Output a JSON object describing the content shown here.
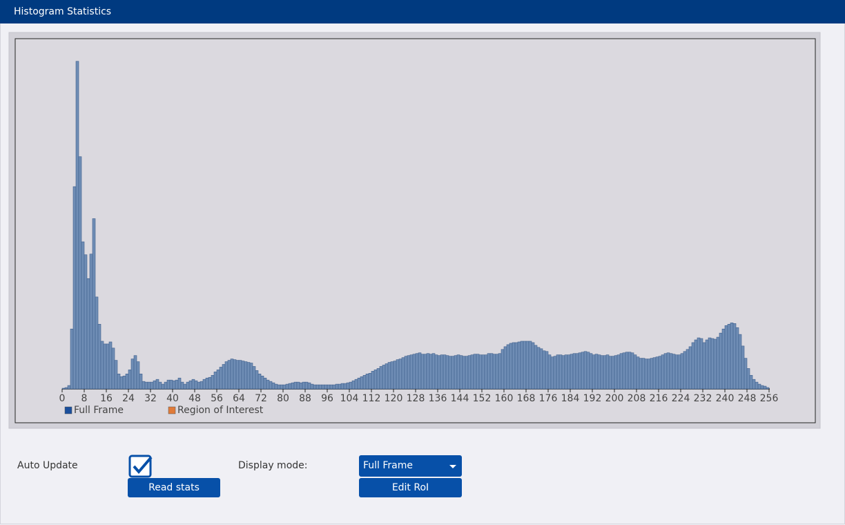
{
  "header": {
    "title": "Histogram Statistics"
  },
  "chart_data": {
    "type": "histogram",
    "bins": [
      0,
      1,
      2,
      3,
      4,
      5,
      6,
      7,
      8,
      9,
      10,
      11,
      12,
      13,
      14,
      15,
      16,
      17,
      18,
      19,
      20,
      21,
      22,
      23,
      24,
      25,
      26,
      27,
      28,
      29,
      30,
      31,
      32,
      33,
      34,
      35,
      36,
      37,
      38,
      39,
      40,
      41,
      42,
      43,
      44,
      45,
      46,
      47,
      48,
      49,
      50,
      51,
      52,
      53,
      54,
      55,
      56,
      57,
      58,
      59,
      60,
      61,
      62,
      63,
      64,
      65,
      66,
      67,
      68,
      69,
      70,
      71,
      72,
      73,
      74,
      75,
      76,
      77,
      78,
      79,
      80,
      81,
      82,
      83,
      84,
      85,
      86,
      87,
      88,
      89,
      90,
      91,
      92,
      93,
      94,
      95,
      96,
      97,
      98,
      99,
      100,
      101,
      102,
      103,
      104,
      105,
      106,
      107,
      108,
      109,
      110,
      111,
      112,
      113,
      114,
      115,
      116,
      117,
      118,
      119,
      120,
      121,
      122,
      123,
      124,
      125,
      126,
      127,
      128,
      129,
      130,
      131,
      132,
      133,
      134,
      135,
      136,
      137,
      138,
      139,
      140,
      141,
      142,
      143,
      144,
      145,
      146,
      147,
      148,
      149,
      150,
      151,
      152,
      153,
      154,
      155,
      156,
      157,
      158,
      159,
      160,
      161,
      162,
      163,
      164,
      165,
      166,
      167,
      168,
      169,
      170,
      171,
      172,
      173,
      174,
      175,
      176,
      177,
      178,
      179,
      180,
      181,
      182,
      183,
      184,
      185,
      186,
      187,
      188,
      189,
      190,
      191,
      192,
      193,
      194,
      195,
      196,
      197,
      198,
      199,
      200,
      201,
      202,
      203,
      204,
      205,
      206,
      207,
      208,
      209,
      210,
      211,
      212,
      213,
      214,
      215,
      216,
      217,
      218,
      219,
      220,
      221,
      222,
      223,
      224,
      225,
      226,
      227,
      228,
      229,
      230,
      231,
      232,
      233,
      234,
      235,
      236,
      237,
      238,
      239,
      240,
      241,
      242,
      243,
      244,
      245,
      246,
      247,
      248,
      249,
      250,
      251,
      252,
      253,
      254,
      255,
      256
    ],
    "series": [
      {
        "name": "Full Frame",
        "color": "#6f8db5",
        "values": [
          1,
          2,
          5,
          88,
          297,
          481,
          341,
          216,
          197,
          162,
          198,
          250,
          135,
          95,
          70,
          66,
          66,
          69,
          60,
          42,
          22,
          18,
          19,
          22,
          28,
          44,
          49,
          40,
          22,
          11,
          10,
          10,
          10,
          12,
          14,
          10,
          7,
          10,
          13,
          13,
          12,
          13,
          16,
          10,
          7,
          10,
          12,
          14,
          12,
          10,
          11,
          14,
          16,
          17,
          20,
          25,
          28,
          32,
          36,
          40,
          42,
          44,
          43,
          42,
          42,
          41,
          40,
          39,
          38,
          33,
          27,
          22,
          19,
          16,
          13,
          11,
          9,
          7,
          6,
          6,
          6,
          7,
          8,
          9,
          10,
          10,
          9,
          10,
          10,
          9,
          7,
          6,
          6,
          6,
          6,
          6,
          6,
          6,
          6,
          7,
          7,
          8,
          8,
          9,
          10,
          12,
          14,
          16,
          18,
          20,
          22,
          23,
          26,
          28,
          30,
          33,
          35,
          37,
          39,
          40,
          41,
          43,
          44,
          46,
          48,
          49,
          50,
          51,
          52,
          53,
          51,
          51,
          52,
          51,
          52,
          50,
          49,
          50,
          50,
          49,
          48,
          48,
          49,
          50,
          49,
          48,
          48,
          49,
          50,
          51,
          51,
          50,
          50,
          50,
          52,
          52,
          51,
          51,
          52,
          58,
          62,
          65,
          67,
          68,
          68,
          69,
          70,
          70,
          70,
          70,
          68,
          64,
          61,
          59,
          56,
          55,
          50,
          47,
          48,
          50,
          50,
          49,
          50,
          50,
          51,
          52,
          52,
          53,
          54,
          55,
          54,
          52,
          50,
          51,
          50,
          49,
          49,
          50,
          48,
          48,
          49,
          50,
          52,
          53,
          54,
          54,
          53,
          50,
          47,
          45,
          45,
          44,
          44,
          45,
          46,
          47,
          48,
          50,
          52,
          53,
          52,
          51,
          50,
          50,
          52,
          55,
          58,
          62,
          68,
          72,
          75,
          74,
          68,
          72,
          75,
          74,
          73,
          76,
          82,
          88,
          93,
          95,
          97,
          96,
          90,
          80,
          63,
          45,
          30,
          20,
          14,
          10,
          7,
          5,
          4,
          2
        ]
      }
    ],
    "legend": [
      {
        "name": "Full Frame",
        "color": "#1a4f9c"
      },
      {
        "name": "Region of Interest",
        "color": "#e07b39"
      }
    ],
    "xlim": [
      0,
      256
    ],
    "xticks": [
      0,
      8,
      16,
      24,
      32,
      40,
      48,
      56,
      64,
      72,
      80,
      88,
      96,
      104,
      112,
      120,
      128,
      136,
      144,
      152,
      160,
      168,
      176,
      184,
      192,
      200,
      208,
      216,
      224,
      232,
      240,
      248,
      256
    ],
    "ylim": [
      0,
      500
    ]
  },
  "controls": {
    "auto_update_label": "Auto Update",
    "auto_update_checked": true,
    "read_stats_button": "Read stats",
    "display_mode_label": "Display mode:",
    "display_mode_value": "Full Frame",
    "edit_roi_button": "Edit RoI"
  }
}
